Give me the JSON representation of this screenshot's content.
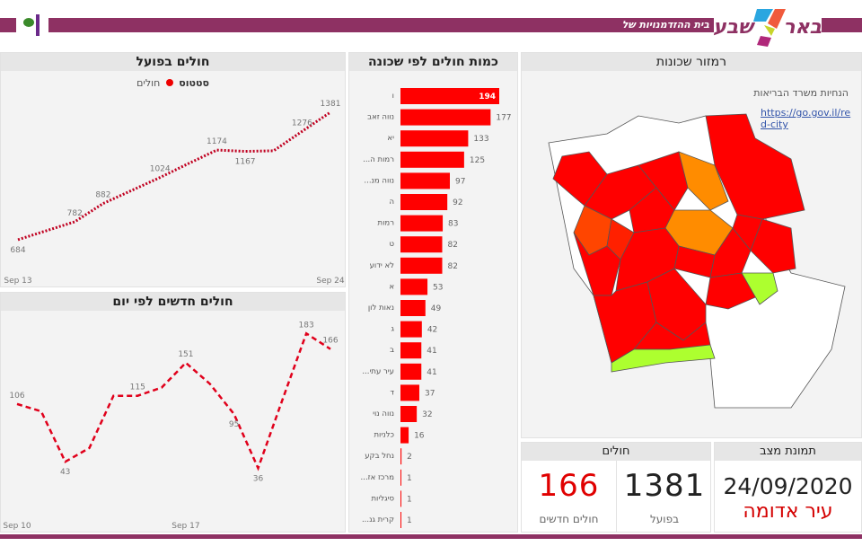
{
  "header": {
    "subtitle": "בית ההזדמנויות של ישראל",
    "logo_text": "באר שבע",
    "colors": {
      "band": "#8e3163"
    }
  },
  "cumulative": {
    "title": "חולים בפועל",
    "legend_label": "סטטוס",
    "legend_item": "חולים"
  },
  "daily": {
    "title": "חולים חדשים לפי יום"
  },
  "neighborhoods": {
    "title": "כמות חולים לפי שכונה"
  },
  "map": {
    "title": "רמזור שכונות",
    "guidance_label": "הנחיות משרד הבריאות",
    "link": "https://go.gov.il/red-city"
  },
  "cards": {
    "snapshot": {
      "title": "תמונת מצב",
      "date": "24/09/2020",
      "status": "עיר אדומה"
    },
    "patients": {
      "title": "חולים",
      "active_value": "1381",
      "active_label": "בפועל",
      "new_value": "166",
      "new_label": "חולים חדשים"
    }
  },
  "chart_data": [
    {
      "type": "line",
      "name_key": "cumulative",
      "x": [
        "Sep 13",
        "Sep 14",
        "Sep 15",
        "Sep 16",
        "Sep 17",
        "Sep 18",
        "Sep 19",
        "Sep 20",
        "Sep 21",
        "Sep 22",
        "Sep 23",
        "Sep 24"
      ],
      "values": [
        684,
        733,
        782,
        882,
        953,
        1024,
        1100,
        1174,
        1167,
        1170,
        1276,
        1381
      ],
      "labeled": [
        0,
        2,
        3,
        5,
        7,
        8,
        10,
        11
      ],
      "xticks": [
        "Sep 13",
        "Sep 24"
      ],
      "ylim": [
        600,
        1420
      ],
      "color": "#c00020",
      "style": "dotted"
    },
    {
      "type": "line",
      "name_key": "daily",
      "x": [
        "Sep 10",
        "Sep 11",
        "Sep 12",
        "Sep 13",
        "Sep 14",
        "Sep 15",
        "Sep 16",
        "Sep 17",
        "Sep 18",
        "Sep 19",
        "Sep 20",
        "Sep 21",
        "Sep 22",
        "Sep 23"
      ],
      "values": [
        106,
        98,
        43,
        58,
        115,
        115,
        124,
        151,
        128,
        95,
        36,
        110,
        183,
        166
      ],
      "labeled": [
        0,
        2,
        5,
        7,
        9,
        10,
        12,
        13
      ],
      "xticks": [
        "Sep 10",
        "Sep 17"
      ],
      "ylim": [
        0,
        200
      ],
      "color": "#e0001b",
      "style": "dashed"
    },
    {
      "type": "bar",
      "orientation": "horizontal",
      "categories": [
        "ו",
        "נווה זאב",
        "יא",
        "...רמות ה",
        "...נווה מנ",
        "ה",
        "רמות",
        "ט",
        "לא ידוע",
        "א",
        "נאות לון",
        "ג",
        "ב",
        "...עיר עתי",
        "ד",
        "נווה נוי",
        "כלניות",
        "נחל בקע",
        "...מרכז אז",
        "סיגליות",
        "...קרית גנ"
      ],
      "values": [
        194,
        177,
        133,
        125,
        97,
        92,
        83,
        82,
        82,
        53,
        49,
        42,
        41,
        41,
        37,
        32,
        16,
        2,
        1,
        1,
        1
      ],
      "color": "#ff0000"
    }
  ]
}
